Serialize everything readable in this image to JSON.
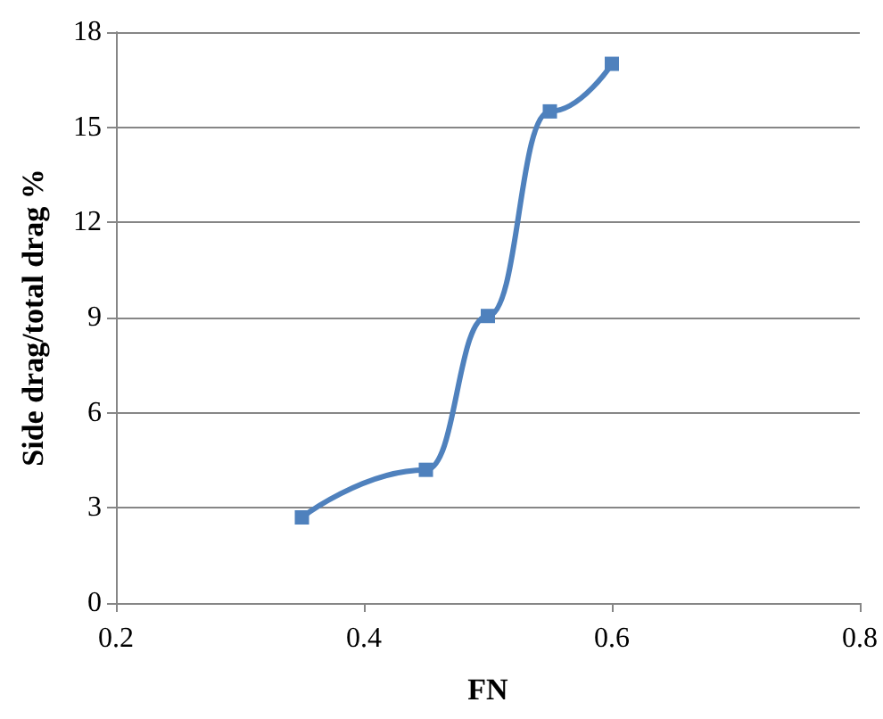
{
  "chart_data": {
    "type": "line",
    "xlabel": "FN",
    "ylabel": "Side drag/total drag %",
    "x": [
      0.35,
      0.45,
      0.5,
      0.55,
      0.6
    ],
    "series": [
      {
        "color": "#4f81bd",
        "values": [
          2.7,
          4.2,
          9.05,
          15.5,
          17.0
        ]
      }
    ],
    "xlim": [
      0.2,
      0.8
    ],
    "xticks": [
      0.2,
      0.4,
      0.6,
      0.8
    ],
    "ylim": [
      0,
      18
    ],
    "yticks": [
      0,
      3,
      6,
      9,
      12,
      15,
      18
    ],
    "grid": "y",
    "marker": "square",
    "line_style": "solid"
  }
}
